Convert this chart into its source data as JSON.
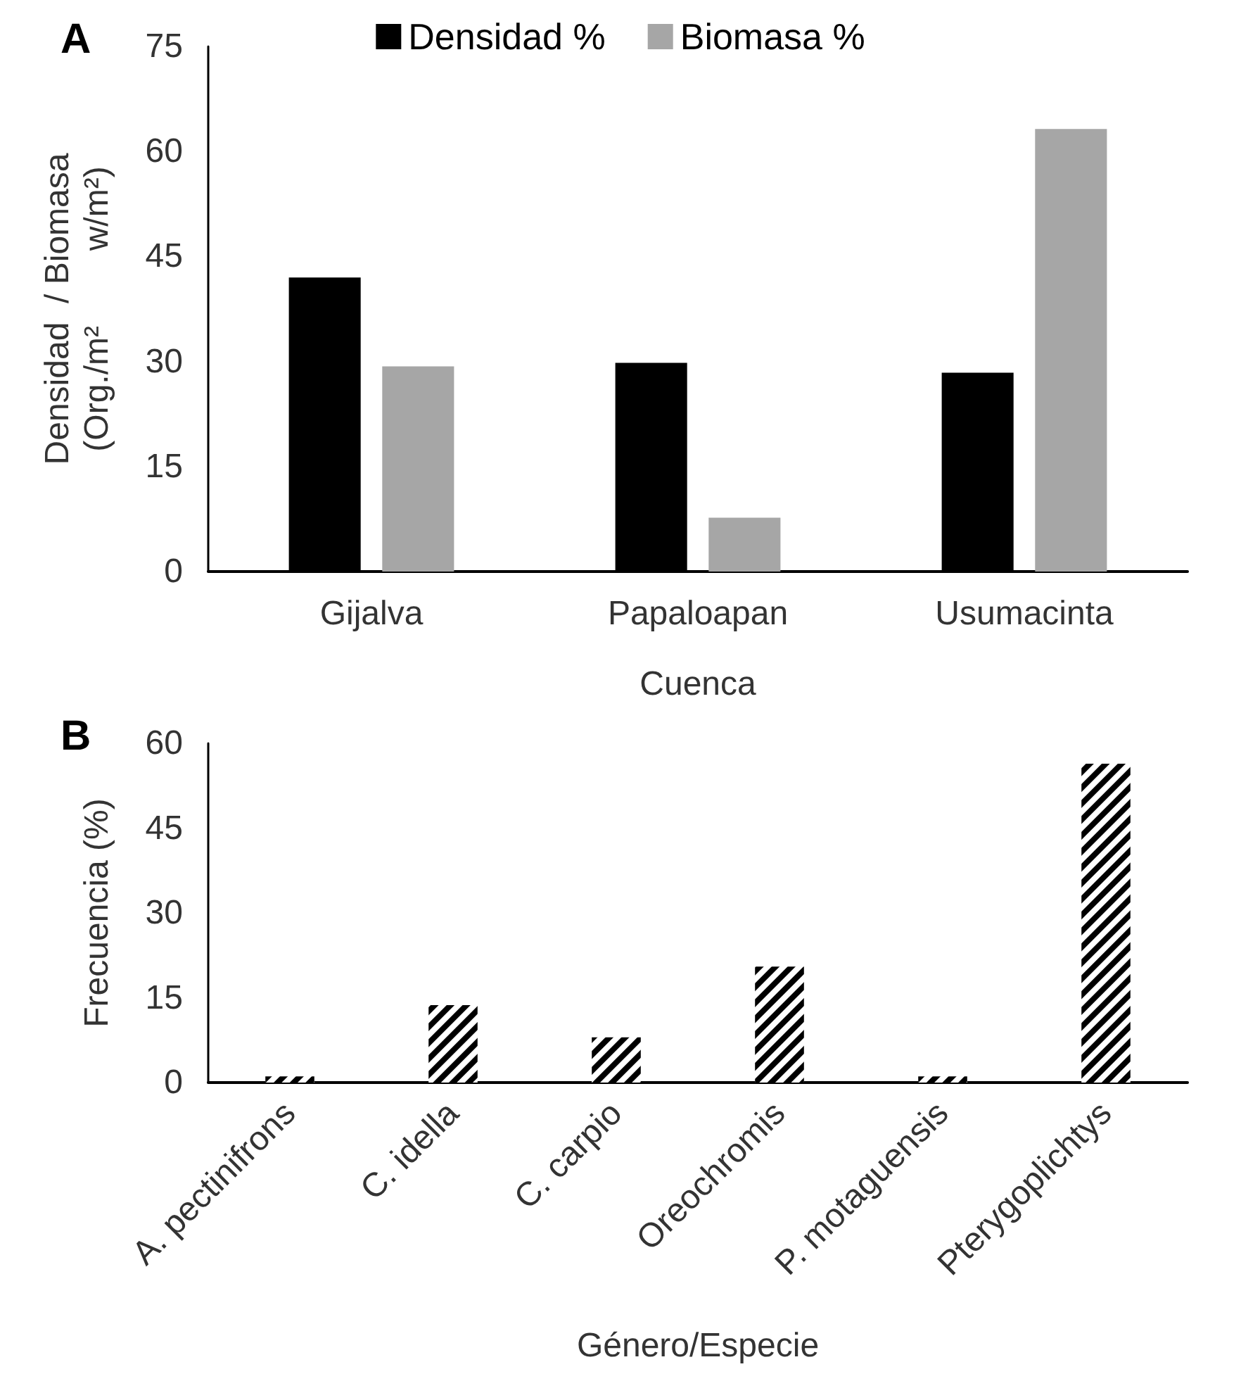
{
  "chart_data": [
    {
      "type": "bar",
      "title": "A",
      "ylabel": "Densidad  / Biomasa\n(Org./m²        w/m²)",
      "xlabel": "Cuenca",
      "categories": [
        "Gijalva",
        "Papaloapan",
        "Usumacinta"
      ],
      "series": [
        {
          "name": "Densidad %",
          "color": "#000000",
          "values": [
            42.0,
            29.8,
            28.4
          ]
        },
        {
          "name": "Biomasa %",
          "color": "#a6a6a6",
          "values": [
            29.3,
            7.7,
            63.2
          ]
        }
      ],
      "ylim": [
        0,
        75
      ],
      "yticks": [
        0,
        15,
        30,
        45,
        60,
        75
      ],
      "grid": false,
      "legend": "top"
    },
    {
      "type": "bar",
      "title": "B",
      "ylabel": "Frecuencia (%)",
      "xlabel": "Género/Especie",
      "categories": [
        "A. pectinifrons",
        "C. idella",
        "C. carpio",
        "Oreochromis",
        "P. motaguensis",
        "Pterygoplichtys"
      ],
      "series": [
        {
          "color": "#000000",
          "values": [
            1.1,
            13.7,
            8.0,
            20.5,
            1.1,
            56.4
          ]
        }
      ],
      "ylim": [
        0,
        60
      ],
      "yticks": [
        0,
        15,
        30,
        45,
        60
      ],
      "grid": false
    }
  ]
}
